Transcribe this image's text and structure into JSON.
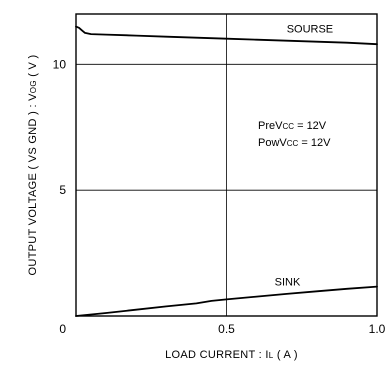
{
  "chart_data": {
    "type": "line",
    "title": "",
    "xlabel": "LOAD CURRENT : IL ( A )",
    "xlabel_parts": {
      "prefix": "LOAD CURRENT : I",
      "sub": "L",
      "suffix": " ( A )"
    },
    "ylabel": "OUTPUT VOLTAGE ( VS GND ) : VOG ( V )",
    "ylabel_parts": {
      "prefix": "OUTPUT VOLTAGE ( VS GND ) : V",
      "sub": "OG",
      "suffix": " ( V )"
    },
    "xlim": [
      0,
      1.0
    ],
    "ylim": [
      0,
      12
    ],
    "grid": true,
    "x_ticks": [
      {
        "value": 0,
        "label": "0"
      },
      {
        "value": 0.5,
        "label": "0.5"
      },
      {
        "value": 1.0,
        "label": "1.0"
      }
    ],
    "y_ticks": [
      {
        "value": 5,
        "label": "5"
      },
      {
        "value": 10,
        "label": "10"
      }
    ],
    "origin_label": "0",
    "series": [
      {
        "name": "SOURSE",
        "color": "#000000",
        "x": [
          0.0,
          0.01,
          0.02,
          0.03,
          0.05,
          0.1,
          0.2,
          0.3,
          0.4,
          0.5,
          0.6,
          0.7,
          0.8,
          0.9,
          1.0
        ],
        "y": [
          11.5,
          11.45,
          11.35,
          11.25,
          11.2,
          11.18,
          11.14,
          11.1,
          11.06,
          11.02,
          10.98,
          10.94,
          10.9,
          10.86,
          10.8
        ]
      },
      {
        "name": "SINK",
        "color": "#000000",
        "x": [
          0.0,
          0.1,
          0.2,
          0.3,
          0.4,
          0.45,
          0.5,
          0.6,
          0.7,
          0.8,
          0.9,
          1.0
        ],
        "y": [
          0.0,
          0.12,
          0.25,
          0.38,
          0.5,
          0.6,
          0.66,
          0.77,
          0.88,
          0.98,
          1.08,
          1.17
        ]
      }
    ],
    "conditions": [
      {
        "prefix": "PreV",
        "sub": "CC",
        "suffix": " = 12V"
      },
      {
        "prefix": "PowV",
        "sub": "CC",
        "suffix": " = 12V"
      }
    ]
  }
}
